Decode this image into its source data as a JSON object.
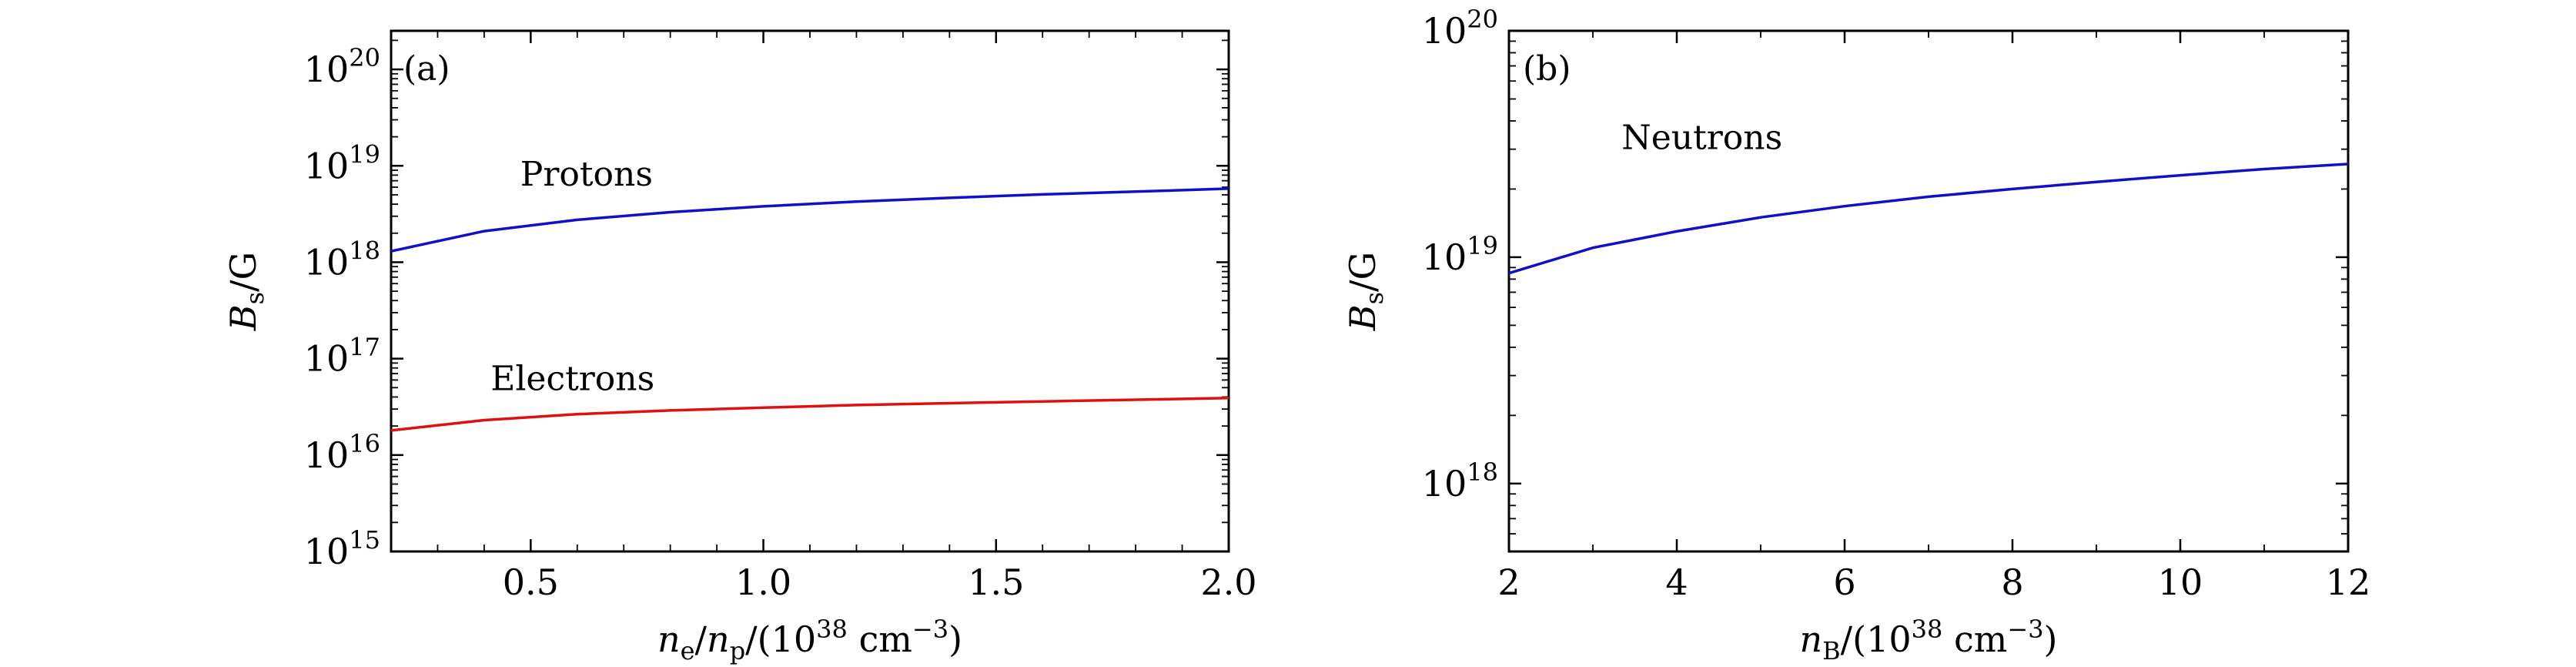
{
  "chart_data": [
    {
      "type": "line",
      "panel": "(a)",
      "ylog": true,
      "xlim": [
        0.2,
        2.0
      ],
      "ylim_exp": [
        15,
        20.4
      ],
      "x_ticks": [
        {
          "v": 0.5,
          "label": "0.5"
        },
        {
          "v": 1.0,
          "label": "1.0"
        },
        {
          "v": 1.5,
          "label": "1.5"
        },
        {
          "v": 2.0,
          "label": "2.0"
        }
      ],
      "y_ticks": [
        {
          "exp": 15,
          "base": "10",
          "sup": "15"
        },
        {
          "exp": 16,
          "base": "10",
          "sup": "16"
        },
        {
          "exp": 17,
          "base": "10",
          "sup": "17"
        },
        {
          "exp": 18,
          "base": "10",
          "sup": "18"
        },
        {
          "exp": 19,
          "base": "10",
          "sup": "19"
        },
        {
          "exp": 20,
          "base": "10",
          "sup": "20"
        }
      ],
      "xlabel": "ne/np/(1038 cm−3)",
      "ylabel": "Bs/G",
      "series": [
        {
          "name": "Protons",
          "color": "#1010c8",
          "x": [
            0.2,
            0.4,
            0.6,
            0.8,
            1.0,
            1.2,
            1.4,
            1.6,
            1.8,
            2.0
          ],
          "y": [
            1.3e+18,
            2.1e+18,
            2.75e+18,
            3.3e+18,
            3.8e+18,
            4.25e+18,
            4.65e+18,
            5.05e+18,
            5.4e+18,
            5.8e+18
          ]
        },
        {
          "name": "Electrons",
          "color": "#e01010",
          "x": [
            0.2,
            0.4,
            0.6,
            0.8,
            1.0,
            1.2,
            1.4,
            1.6,
            1.8,
            2.0
          ],
          "y": [
            1.8e+16,
            2.3e+16,
            2.65e+16,
            2.9e+16,
            3.1e+16,
            3.3e+16,
            3.45e+16,
            3.6e+16,
            3.75e+16,
            3.9e+16
          ]
        }
      ],
      "annotations": [
        {
          "text": "Protons",
          "x": 0.62,
          "y": 6.2e+18
        },
        {
          "text": "Electrons",
          "x": 0.59,
          "y": 4.7e+16
        }
      ]
    },
    {
      "type": "line",
      "panel": "(b)",
      "ylog": true,
      "xlim": [
        2,
        12
      ],
      "ylim_exp": [
        17.7,
        20.0
      ],
      "x_ticks": [
        {
          "v": 2,
          "label": "2"
        },
        {
          "v": 4,
          "label": "4"
        },
        {
          "v": 6,
          "label": "6"
        },
        {
          "v": 8,
          "label": "8"
        },
        {
          "v": 10,
          "label": "10"
        },
        {
          "v": 12,
          "label": "12"
        }
      ],
      "y_ticks": [
        {
          "exp": 18,
          "base": "10",
          "sup": "18"
        },
        {
          "exp": 19,
          "base": "10",
          "sup": "19"
        },
        {
          "exp": 20,
          "base": "10",
          "sup": "20"
        }
      ],
      "xlabel": "nB/(1038 cm−3)",
      "ylabel": "Bs/G",
      "series": [
        {
          "name": "Neutrons",
          "color": "#1010c8",
          "x": [
            2,
            3,
            4,
            5,
            6,
            7,
            8,
            9,
            10,
            11,
            12
          ],
          "y": [
            8.5e+18,
            1.1e+19,
            1.3e+19,
            1.5e+19,
            1.68e+19,
            1.85e+19,
            2e+19,
            2.15e+19,
            2.3e+19,
            2.45e+19,
            2.58e+19
          ]
        }
      ],
      "annotations": [
        {
          "text": "Neutrons",
          "x": 4.3,
          "y": 3e+19
        }
      ]
    }
  ],
  "panels": [
    {
      "letter": "(a)",
      "xlabel": {
        "n": "n",
        "sub": "e",
        "slash": "/",
        "n2": "n",
        "sub2": "p",
        "rest": "/(10",
        "sup": "38",
        "unit": " cm",
        "sup2": "−3",
        "close": ")"
      },
      "ylabel": {
        "b": "B",
        "sub": "s",
        "rest": "/G"
      }
    },
    {
      "letter": "(b)",
      "xlabel": {
        "n": "n",
        "sub": "B",
        "rest": "/(10",
        "sup": "38",
        "unit": " cm",
        "sup2": "−3",
        "close": ")"
      },
      "ylabel": {
        "b": "B",
        "sub": "s",
        "rest": "/G"
      }
    }
  ]
}
